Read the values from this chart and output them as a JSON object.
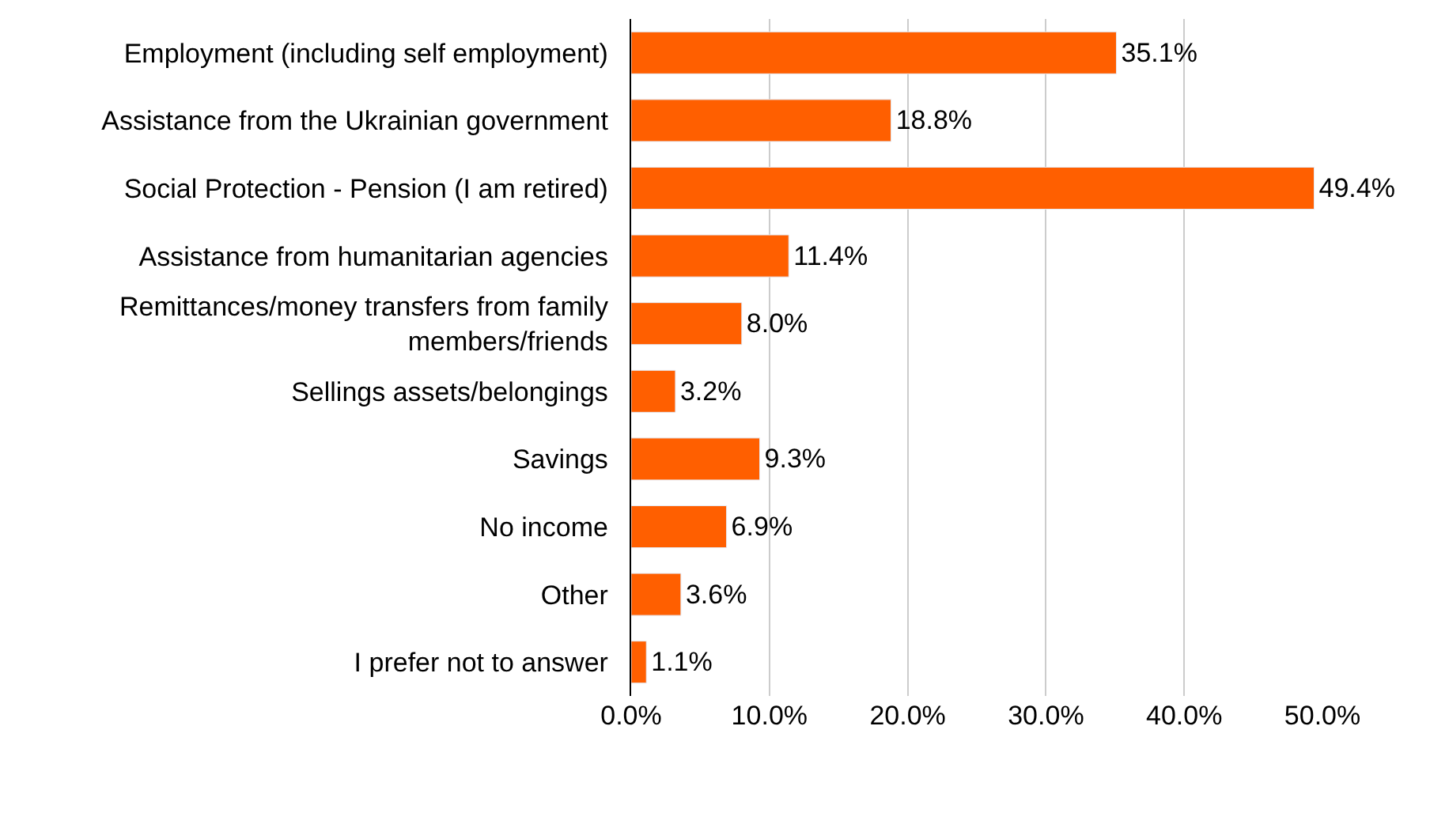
{
  "chart_data": {
    "type": "bar",
    "orientation": "horizontal",
    "categories": [
      "Employment (including self employment)",
      "Assistance from the Ukrainian government",
      "Social Protection - Pension (I am retired)",
      "Assistance from humanitarian agencies",
      "Remittances/money transfers from family members/friends",
      "Sellings assets/belongings",
      "Savings",
      "No income",
      "Other",
      "I prefer not to answer"
    ],
    "series": [
      {
        "color": "#ff5f00",
        "values": [
          35.1,
          18.8,
          49.4,
          11.4,
          8.0,
          3.2,
          9.3,
          6.9,
          3.6,
          1.1
        ],
        "value_labels": [
          "35.1%",
          "18.8%",
          "49.4%",
          "11.4%",
          "8.0%",
          "3.2%",
          "9.3%",
          "6.9%",
          "3.6%",
          "1.1%"
        ]
      }
    ],
    "xlim": [
      0,
      50
    ],
    "xticks": [
      {
        "value": 0,
        "label": "0.0%"
      },
      {
        "value": 10,
        "label": "10.0%"
      },
      {
        "value": 20,
        "label": "20.0%"
      },
      {
        "value": 30,
        "label": "30.0%"
      },
      {
        "value": 40,
        "label": "40.0%"
      },
      {
        "value": 50,
        "label": "50.0%"
      }
    ],
    "grid": "x"
  }
}
